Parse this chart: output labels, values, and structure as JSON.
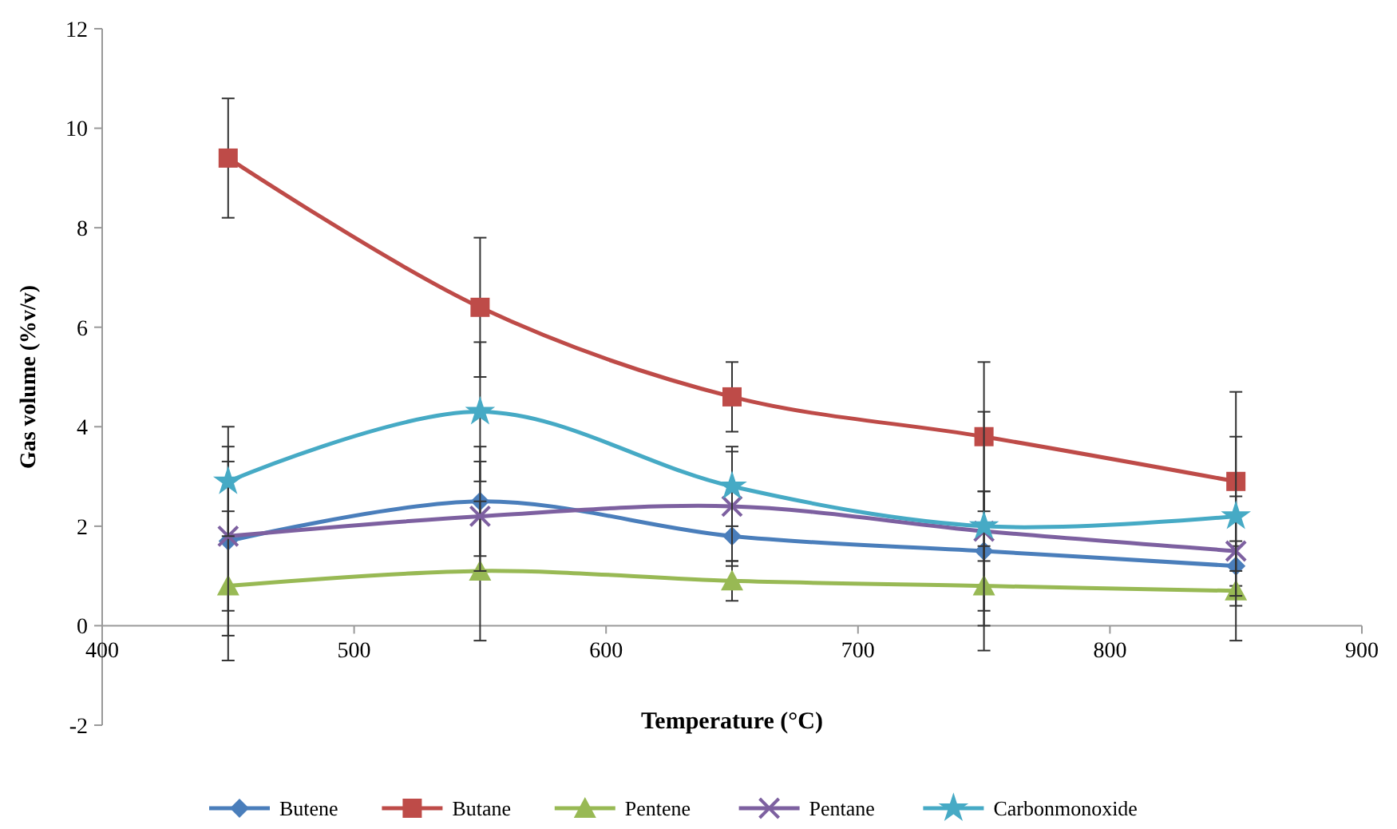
{
  "chart_data": {
    "type": "line",
    "xlabel": "Temperature (°C)",
    "ylabel": "Gas volume (%v/v)",
    "x": [
      450,
      550,
      650,
      750,
      850
    ],
    "xlim": [
      400,
      900
    ],
    "xticks": [
      400,
      500,
      600,
      700,
      800,
      900
    ],
    "ylim": [
      -2,
      12
    ],
    "yticks": [
      -2,
      0,
      2,
      4,
      6,
      8,
      10,
      12
    ],
    "grid": false,
    "legend": "bottom",
    "line_style": "solid",
    "series": [
      {
        "name": "Butene",
        "color": "#4a7ebb",
        "marker": "diamond",
        "values": [
          1.7,
          2.5,
          1.8,
          1.5,
          1.2
        ],
        "errors": [
          1.9,
          1.1,
          0.6,
          1.2,
          0.4
        ]
      },
      {
        "name": "Butane",
        "color": "#be4b48",
        "marker": "square",
        "values": [
          9.4,
          6.4,
          4.6,
          3.8,
          2.9
        ],
        "errors": [
          1.2,
          1.4,
          0.7,
          1.5,
          1.8
        ]
      },
      {
        "name": "Pentene",
        "color": "#98b954",
        "marker": "triangle",
        "values": [
          0.8,
          1.1,
          0.9,
          0.8,
          0.7
        ],
        "errors": [
          1.5,
          1.4,
          0.4,
          0.8,
          1.0
        ]
      },
      {
        "name": "Pentane",
        "color": "#7d60a0",
        "marker": "cross",
        "values": [
          1.8,
          2.2,
          2.4,
          1.9,
          1.5
        ],
        "errors": [
          1.5,
          1.1,
          1.1,
          2.4,
          1.1
        ]
      },
      {
        "name": "Carbonmonoxide",
        "color": "#46aac5",
        "marker": "star",
        "values": [
          2.9,
          4.3,
          2.8,
          2.0,
          2.2
        ],
        "errors": [
          1.1,
          1.4,
          0.8,
          0.7,
          1.6
        ]
      }
    ]
  }
}
